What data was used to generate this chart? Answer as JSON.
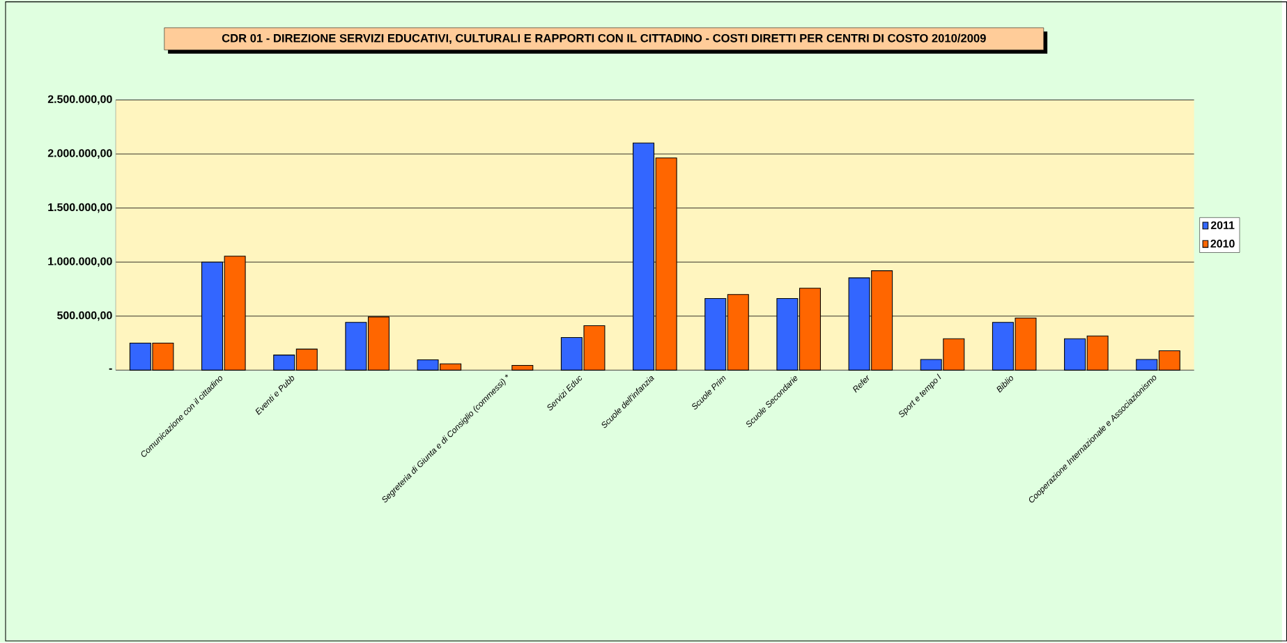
{
  "chart_data": {
    "type": "bar",
    "title": "CDR 01 - DIREZIONE SERVIZI EDUCATIVI, CULTURALI E RAPPORTI CON IL CITTADINO - COSTI DIRETTI PER CENTRI DI COSTO 2010/2009",
    "categories": [
      null,
      "Comunicazione con il cittadino",
      "Eventi e Pubb",
      null,
      null,
      "Segreteria di Giunta e di Consiglio (commessi) *",
      "Servizi Educ",
      "Scuole dell'infanzia",
      "Scuole Prim",
      "Scuole Secondarie",
      "Refer",
      "Sport e tempo l",
      "Biblio",
      null,
      "Cooperazione Internazionale e Associazionismo"
    ],
    "series": [
      {
        "name": "2011",
        "color": "#3366ff",
        "values": [
          250000,
          1000000,
          140000,
          442000,
          96000,
          null,
          302000,
          2102000,
          663000,
          663000,
          854000,
          99000,
          442000,
          291000,
          99000
        ]
      },
      {
        "name": "2010",
        "color": "#ff6600",
        "values": [
          250000,
          1055000,
          195000,
          493000,
          59000,
          44000,
          412000,
          1963000,
          700000,
          758000,
          920000,
          291000,
          482000,
          317000,
          180000
        ]
      }
    ],
    "ylim": [
      0,
      2500000
    ],
    "yticks": [
      {
        "value": 0,
        "label": "-"
      },
      {
        "value": 500000,
        "label": "500.000,00"
      },
      {
        "value": 1000000,
        "label": "1.000.000,00"
      },
      {
        "value": 1500000,
        "label": "1.500.000,00"
      },
      {
        "value": 2000000,
        "label": "2.000.000,00"
      },
      {
        "value": 2500000,
        "label": "2.500.000,00"
      }
    ],
    "grid": "y",
    "legend": "right"
  }
}
